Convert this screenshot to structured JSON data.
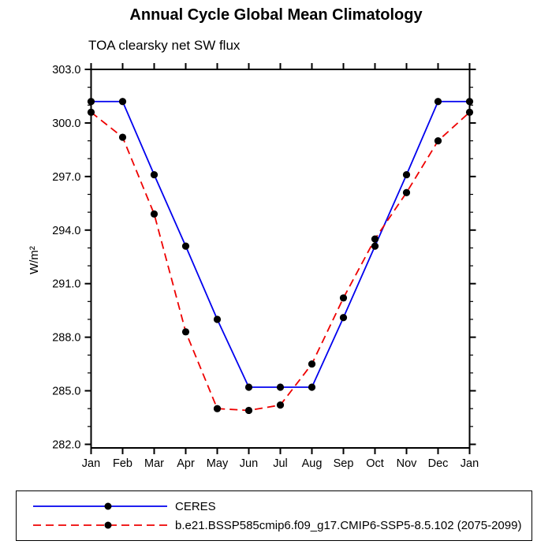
{
  "page": {
    "title": "Annual Cycle Global Mean Climatology",
    "subtitle": "TOA clearsky net SW flux"
  },
  "chart_data": {
    "type": "line",
    "title": "Annual Cycle Global Mean Climatology",
    "subtitle": "TOA clearsky net SW flux",
    "ylabel": "W/m²",
    "xlabel": "",
    "categories": [
      "Jan",
      "Feb",
      "Mar",
      "Apr",
      "May",
      "Jun",
      "Jul",
      "Aug",
      "Sep",
      "Oct",
      "Nov",
      "Dec",
      "Jan"
    ],
    "series": [
      {
        "name": "CERES",
        "color": "#0000ee",
        "line_style": "solid",
        "marker": "circle",
        "marker_color": "#000000",
        "values": [
          301.2,
          301.2,
          297.1,
          293.1,
          289.0,
          285.2,
          285.2,
          285.2,
          289.1,
          293.1,
          297.1,
          301.2,
          301.2
        ]
      },
      {
        "name": "b.e21.BSSP585cmip6.f09_g17.CMIP6-SSP5-8.5.102 (2075-2099)",
        "color": "#ee0000",
        "line_style": "dashed",
        "marker": "circle",
        "marker_color": "#000000",
        "values": [
          300.6,
          299.2,
          294.9,
          288.3,
          284.0,
          283.9,
          284.2,
          286.5,
          290.2,
          293.5,
          296.1,
          299.0,
          300.6
        ]
      }
    ],
    "ylim": [
      281.8,
      303.0
    ],
    "y_major_ticks": [
      282.0,
      285.0,
      288.0,
      291.0,
      294.0,
      297.0,
      300.0,
      303.0
    ],
    "y_minor_step": 1.0,
    "y_tick_decimals": 1,
    "grid": false,
    "legend_position": "bottom",
    "axis_color": "#000000"
  }
}
